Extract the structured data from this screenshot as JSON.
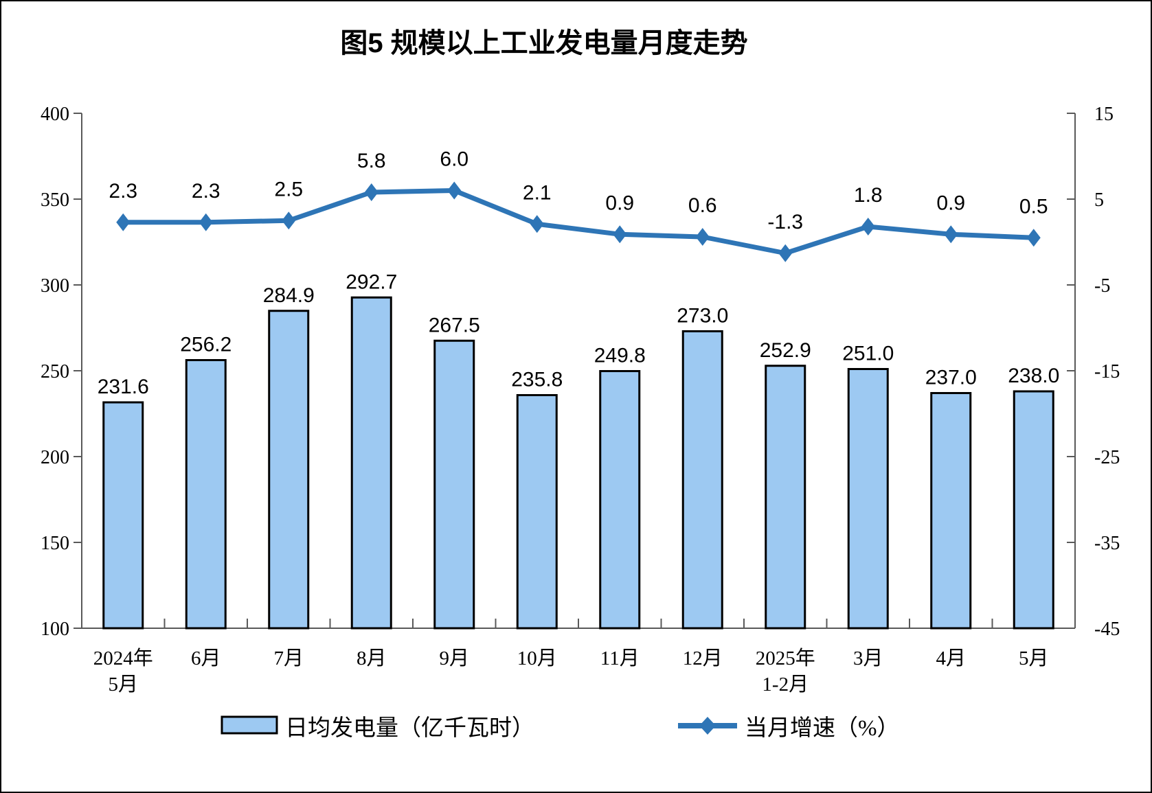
{
  "title": "图5 规模以上工业发电量月度走势",
  "colors": {
    "bar_fill": "#9DC9F2",
    "bar_border": "#000000",
    "line": "#2E75B6",
    "axis": "#595959",
    "text": "#000000",
    "background": "#FFFFFF",
    "frame_border": "#000000"
  },
  "chart_data": {
    "type": "combo",
    "title": "图5 规模以上工业发电量月度走势",
    "categories": [
      "2024年\n5月",
      "6月",
      "7月",
      "8月",
      "9月",
      "10月",
      "11月",
      "12月",
      "2025年\n1-2月",
      "3月",
      "4月",
      "5月"
    ],
    "series": [
      {
        "name": "日均发电量（亿千瓦时）",
        "type": "bar",
        "axis": "left",
        "values": [
          231.6,
          256.2,
          284.9,
          292.7,
          267.5,
          235.8,
          249.8,
          273.0,
          252.9,
          251.0,
          237.0,
          238.0
        ],
        "labels": [
          "231.6",
          "256.2",
          "284.9",
          "292.7",
          "267.5",
          "235.8",
          "249.8",
          "273.0",
          "252.9",
          "251.0",
          "237.0",
          "238.0"
        ]
      },
      {
        "name": "当月增速（%）",
        "type": "line",
        "axis": "right",
        "values": [
          2.3,
          2.3,
          2.5,
          5.8,
          6.0,
          2.1,
          0.9,
          0.6,
          -1.3,
          1.8,
          0.9,
          0.5
        ],
        "labels": [
          "2.3",
          "2.3",
          "2.5",
          "5.8",
          "6.0",
          "2.1",
          "0.9",
          "0.6",
          "-1.3",
          "1.8",
          "0.9",
          "0.5"
        ]
      }
    ],
    "left_axis": {
      "min": 100,
      "max": 400,
      "step": 50,
      "ticks": [
        "100",
        "150",
        "200",
        "250",
        "300",
        "350",
        "400"
      ]
    },
    "right_axis": {
      "min": -45,
      "max": 15,
      "step": 10,
      "ticks": [
        "-45",
        "-35",
        "-25",
        "-15",
        "-5",
        "5",
        "15"
      ]
    },
    "grid": false,
    "legend_position": "bottom"
  }
}
